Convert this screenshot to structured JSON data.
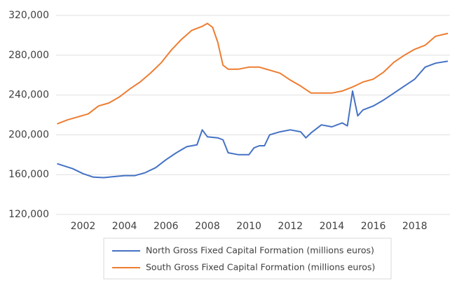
{
  "chart_data": {
    "type": "line",
    "xlim": [
      2000.7,
      2019.7
    ],
    "xticks": [
      2002,
      2004,
      2006,
      2008,
      2010,
      2012,
      2014,
      2016,
      2018
    ],
    "ylim": [
      120000,
      320000
    ],
    "yticks": [
      {
        "value": 120000,
        "label": "120,000"
      },
      {
        "value": 160000,
        "label": "160,000"
      },
      {
        "value": 200000,
        "label": "200,000"
      },
      {
        "value": 240000,
        "label": "240,000"
      },
      {
        "value": 280000,
        "label": "280,000"
      },
      {
        "value": 320000,
        "label": "320,000"
      }
    ],
    "grid": true,
    "legend": "bottom",
    "series": [
      {
        "name": "North Gross Fixed Capital Formation (millions euros)",
        "color": "#4472c4",
        "x": [
          2000.75,
          2001.5,
          2002,
          2002.5,
          2003,
          2003.5,
          2004,
          2004.5,
          2005,
          2005.5,
          2006,
          2006.5,
          2007,
          2007.5,
          2007.75,
          2008,
          2008.5,
          2008.75,
          2009,
          2009.5,
          2010,
          2010.25,
          2010.5,
          2010.75,
          2011,
          2011.5,
          2012,
          2012.5,
          2012.75,
          2013,
          2013.5,
          2014,
          2014.5,
          2014.75,
          2015,
          2015.25,
          2015.5,
          2016,
          2016.5,
          2017,
          2017.5,
          2018,
          2018.5,
          2019,
          2019.6
        ],
        "values": [
          171000,
          166000,
          161000,
          157500,
          157000,
          158000,
          159000,
          159000,
          162000,
          167000,
          175000,
          182000,
          188000,
          190000,
          205000,
          198000,
          197000,
          195000,
          182000,
          180000,
          180000,
          187000,
          189000,
          189000,
          200000,
          203000,
          205000,
          203000,
          197000,
          202000,
          210000,
          208000,
          212000,
          209000,
          244000,
          219000,
          225000,
          229000,
          235000,
          242000,
          249000,
          256000,
          268000,
          272000,
          274000
        ]
      },
      {
        "name": "South Gross Fixed Capital Formation (millions euros)",
        "color": "#ed7d31",
        "x": [
          2000.75,
          2001.25,
          2001.75,
          2002.25,
          2002.75,
          2003.25,
          2003.75,
          2004.25,
          2004.75,
          2005.25,
          2005.75,
          2006.25,
          2006.75,
          2007.25,
          2007.75,
          2008,
          2008.25,
          2008.5,
          2008.75,
          2009,
          2009.5,
          2010,
          2010.5,
          2011,
          2011.5,
          2012,
          2012.5,
          2013,
          2013.5,
          2014,
          2014.5,
          2015,
          2015.5,
          2016,
          2016.5,
          2017,
          2017.5,
          2018,
          2018.5,
          2019,
          2019.6
        ],
        "values": [
          211000,
          215000,
          218000,
          221000,
          229000,
          232000,
          238000,
          246000,
          253000,
          262000,
          272000,
          285000,
          296000,
          305000,
          309000,
          312000,
          308000,
          293000,
          270000,
          266000,
          266000,
          268000,
          268000,
          265000,
          262000,
          255000,
          249000,
          242000,
          242000,
          242000,
          244000,
          248000,
          253000,
          256000,
          263000,
          273000,
          280000,
          286000,
          290000,
          299000,
          302000
        ]
      }
    ]
  }
}
